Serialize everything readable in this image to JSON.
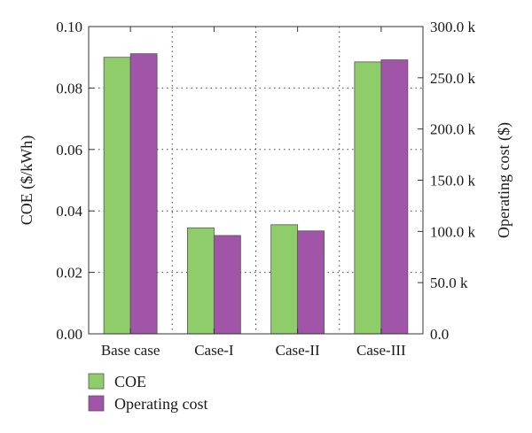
{
  "chart_data": {
    "type": "bar",
    "categories": [
      "Base case",
      "Case-I",
      "Case-II",
      "Case-III"
    ],
    "series": [
      {
        "name": "COE",
        "axis": "left",
        "color": "#8fcc6a",
        "values": [
          0.09,
          0.0345,
          0.0355,
          0.0885
        ]
      },
      {
        "name": "Operating cost",
        "axis": "right",
        "color": "#a055a8",
        "values": [
          273500,
          96000,
          100500,
          267500
        ]
      }
    ],
    "ylabel": "COE ($/kWh)",
    "y2label": "Operating cost ($)",
    "ylim": [
      0,
      0.1
    ],
    "y2lim": [
      0,
      300000
    ],
    "yticks": [
      "0.00",
      "0.02",
      "0.04",
      "0.06",
      "0.08",
      "0.10"
    ],
    "y2ticks": [
      "0.0",
      "50.0 k",
      "100.0 k",
      "150.0 k",
      "200.0 k",
      "250.0 k",
      "300.0 k"
    ],
    "grid": true,
    "legend_position": "bottom-left"
  }
}
